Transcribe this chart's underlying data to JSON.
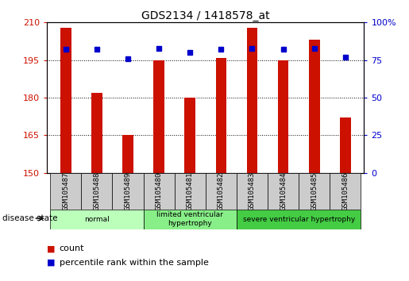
{
  "title": "GDS2134 / 1418578_at",
  "samples": [
    "GSM105487",
    "GSM105488",
    "GSM105489",
    "GSM105480",
    "GSM105481",
    "GSM105482",
    "GSM105483",
    "GSM105484",
    "GSM105485",
    "GSM105486"
  ],
  "counts": [
    208,
    182,
    165,
    195,
    180,
    196,
    208,
    195,
    203,
    172
  ],
  "percentiles": [
    82,
    82,
    76,
    83,
    80,
    82,
    83,
    82,
    83,
    77
  ],
  "ylim_left": [
    150,
    210
  ],
  "ylim_right": [
    0,
    100
  ],
  "yticks_left": [
    150,
    165,
    180,
    195,
    210
  ],
  "yticks_right": [
    0,
    25,
    50,
    75,
    100
  ],
  "ytick_right_labels": [
    "0",
    "25",
    "50",
    "75",
    "100%"
  ],
  "bar_color": "#CC1100",
  "marker_color": "#0000CC",
  "grid_color": "#000000",
  "disease_groups": [
    {
      "label": "normal",
      "start": 0,
      "end": 3,
      "color": "#BBFFBB"
    },
    {
      "label": "limited ventricular\nhypertrophy",
      "start": 3,
      "end": 6,
      "color": "#88EE88"
    },
    {
      "label": "severe ventricular hypertrophy",
      "start": 6,
      "end": 10,
      "color": "#44CC44"
    }
  ],
  "disease_state_label": "disease state",
  "legend_count_label": "count",
  "legend_percentile_label": "percentile rank within the sample",
  "bar_width": 0.35,
  "sample_box_color": "#CCCCCC",
  "bg_color": "#FFFFFF"
}
